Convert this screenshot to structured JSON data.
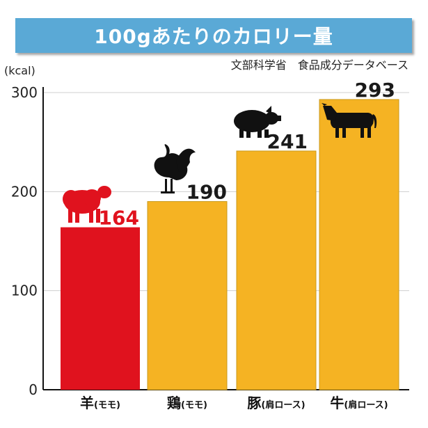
{
  "chart_data": {
    "type": "bar",
    "title": "100gあたりのカロリー量",
    "source": "文部科学省　食品成分データベース",
    "ylabel": "(kcal)",
    "ylim": [
      0,
      300
    ],
    "yticks": [
      0,
      100,
      200,
      300
    ],
    "grid": true,
    "categories": [
      {
        "name": "羊",
        "sub": "(モモ)"
      },
      {
        "name": "鶏",
        "sub": "(モモ)"
      },
      {
        "name": "豚",
        "sub": "(肩ロース)"
      },
      {
        "name": "牛",
        "sub": "(肩ロース)"
      }
    ],
    "values": [
      164,
      190,
      241,
      293
    ],
    "colors": [
      "#e0121e",
      "#f5b323",
      "#f5b323",
      "#f5b323"
    ],
    "label_colors": [
      "#e0121e",
      "#1a1a1a",
      "#1a1a1a",
      "#1a1a1a"
    ],
    "icons": [
      "sheep-icon",
      "rooster-icon",
      "pig-icon",
      "cow-icon"
    ]
  }
}
